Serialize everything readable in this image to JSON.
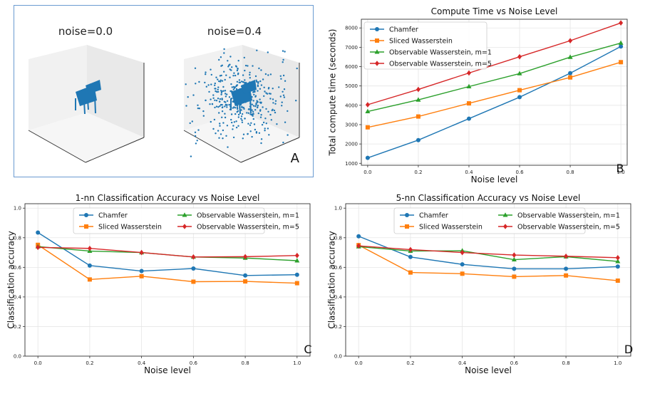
{
  "panel_a": {
    "labels": [
      "noise=0.0",
      "noise=0.4"
    ],
    "letter": "A"
  },
  "chart_data": [
    {
      "id": "B",
      "type": "line",
      "title": "Compute Time vs Noise Level",
      "xlabel": "Noise level",
      "ylabel": "Total compute time (seconds)",
      "letter": "B",
      "x": [
        0.0,
        0.2,
        0.4,
        0.6,
        0.8,
        1.0
      ],
      "xticks": [
        "0.0",
        "0.2",
        "0.4",
        "0.6",
        "0.8",
        "1.0"
      ],
      "yticks": [
        "1000",
        "2000",
        "3000",
        "4000",
        "5000",
        "6000",
        "7000",
        "8000"
      ],
      "xlim": [
        -0.025,
        1.025
      ],
      "ylim": [
        900,
        8450
      ],
      "legend_position": "upper-left",
      "legend_columns": 1,
      "grid": true,
      "series": [
        {
          "name": "Chamfer",
          "color": "#1f77b4",
          "marker": "circle",
          "values": [
            1280,
            2200,
            3310,
            4420,
            5660,
            7040
          ]
        },
        {
          "name": "Sliced Wasserstein",
          "color": "#ff7f0e",
          "marker": "square",
          "values": [
            2860,
            3420,
            4100,
            4780,
            5440,
            6230
          ]
        },
        {
          "name": "Observable Wasserstein, m=1",
          "color": "#2ca02c",
          "marker": "triangle",
          "values": [
            3680,
            4280,
            4970,
            5640,
            6490,
            7220
          ]
        },
        {
          "name": "Observable Wasserstein, m=5",
          "color": "#d62728",
          "marker": "diamond",
          "values": [
            4030,
            4820,
            5670,
            6510,
            7340,
            8260
          ]
        }
      ]
    },
    {
      "id": "C",
      "type": "line",
      "title": "1-nn Classification Accuracy vs Noise Level",
      "xlabel": "Noise level",
      "ylabel": "Classification accuracy",
      "letter": "C",
      "x": [
        0.0,
        0.2,
        0.4,
        0.6,
        0.8,
        1.0
      ],
      "xticks": [
        "0.0",
        "0.2",
        "0.4",
        "0.6",
        "0.8",
        "1.0"
      ],
      "yticks": [
        "0.0",
        "0.2",
        "0.4",
        "0.6",
        "0.8",
        "1.0"
      ],
      "xlim": [
        -0.05,
        1.05
      ],
      "ylim": [
        0.0,
        1.03
      ],
      "legend_position": "upper-center",
      "legend_columns": 2,
      "grid": true,
      "series": [
        {
          "name": "Chamfer",
          "color": "#1f77b4",
          "marker": "circle",
          "values": [
            0.835,
            0.612,
            0.575,
            0.592,
            0.545,
            0.55
          ]
        },
        {
          "name": "Sliced Wasserstein",
          "color": "#ff7f0e",
          "marker": "square",
          "values": [
            0.752,
            0.518,
            0.54,
            0.503,
            0.505,
            0.493
          ]
        },
        {
          "name": "Observable Wasserstein, m=1",
          "color": "#2ca02c",
          "marker": "triangle",
          "values": [
            0.74,
            0.71,
            0.7,
            0.67,
            0.663,
            0.645
          ]
        },
        {
          "name": "Observable Wasserstein, m=5",
          "color": "#d62728",
          "marker": "diamond",
          "values": [
            0.735,
            0.728,
            0.7,
            0.67,
            0.672,
            0.68
          ]
        }
      ]
    },
    {
      "id": "D",
      "type": "line",
      "title": "5-nn Classification Accuracy vs Noise Level",
      "xlabel": "Noise level",
      "ylabel": "Classification accuracy",
      "letter": "D",
      "x": [
        0.0,
        0.2,
        0.4,
        0.6,
        0.8,
        1.0
      ],
      "xticks": [
        "0.0",
        "0.2",
        "0.4",
        "0.6",
        "0.8",
        "1.0"
      ],
      "yticks": [
        "0.0",
        "0.2",
        "0.4",
        "0.6",
        "0.8",
        "1.0"
      ],
      "xlim": [
        -0.05,
        1.05
      ],
      "ylim": [
        0.0,
        1.03
      ],
      "legend_position": "upper-center",
      "legend_columns": 2,
      "grid": true,
      "series": [
        {
          "name": "Chamfer",
          "color": "#1f77b4",
          "marker": "circle",
          "values": [
            0.81,
            0.67,
            0.62,
            0.59,
            0.59,
            0.605
          ]
        },
        {
          "name": "Sliced Wasserstein",
          "color": "#ff7f0e",
          "marker": "square",
          "values": [
            0.75,
            0.565,
            0.557,
            0.537,
            0.545,
            0.51
          ]
        },
        {
          "name": "Observable Wasserstein, m=1",
          "color": "#2ca02c",
          "marker": "triangle",
          "values": [
            0.74,
            0.71,
            0.712,
            0.652,
            0.672,
            0.64
          ]
        },
        {
          "name": "Observable Wasserstein, m=5",
          "color": "#d62728",
          "marker": "diamond",
          "values": [
            0.745,
            0.72,
            0.7,
            0.683,
            0.675,
            0.665
          ]
        }
      ]
    }
  ]
}
